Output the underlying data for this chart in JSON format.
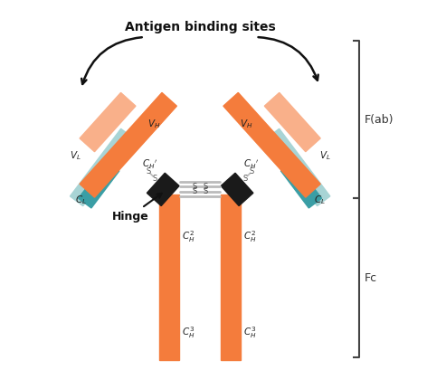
{
  "background_color": "#ffffff",
  "orange": "#F47C3C",
  "orange_light": "#F9B08A",
  "teal_light": "#A8D4D5",
  "teal_dark": "#3A9EA5",
  "black": "#1a1a1a",
  "gray": "#bbbbbb",
  "title": "Antigen binding sites",
  "fab_label": "F(ab)",
  "fc_label": "Fc",
  "hinge_label": "Hinge",
  "figsize": [
    4.72,
    4.3
  ],
  "dpi": 100
}
